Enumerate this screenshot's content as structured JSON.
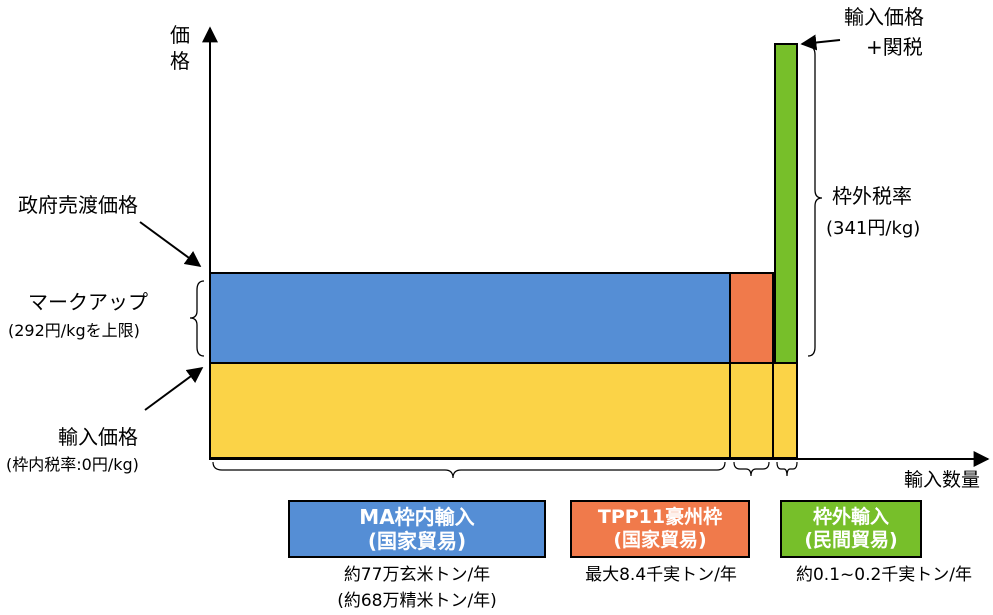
{
  "axes": {
    "y_label": "価格",
    "x_label": "輸入数量"
  },
  "labels": {
    "gov_sale_price": "政府売渡価格",
    "markup_title": "マークアップ",
    "markup_sub": "(292円/kgを上限)",
    "import_price_title": "輸入価格",
    "import_price_sub": "(枠内税率:0円/kg)",
    "top_right_1": "輸入価格",
    "top_right_2": "+関税",
    "out_quota_rate_title": "枠外税率",
    "out_quota_rate_sub": "(341円/kg)"
  },
  "categories": [
    {
      "name_line1": "MA枠内輸入",
      "name_line2": "(国家貿易)",
      "volume_line1": "約77万玄米トン/年",
      "volume_line2": "(約68万精米トン/年)",
      "color": "#558ed5"
    },
    {
      "name_line1": "TPP11豪州枠",
      "name_line2": "(国家貿易)",
      "volume_line1": "最大8.4千実トン/年",
      "color": "#f07a4b"
    },
    {
      "name_line1": "枠外輸入",
      "name_line2": "(民間貿易)",
      "volume_line1": "約0.1~0.2千実トン/年",
      "color": "#77bf2a"
    }
  ],
  "colors": {
    "import_price_fill": "#fbd347",
    "ma_fill": "#558ed5",
    "tpp_fill": "#f07a4b",
    "out_fill": "#77bf2a"
  }
}
